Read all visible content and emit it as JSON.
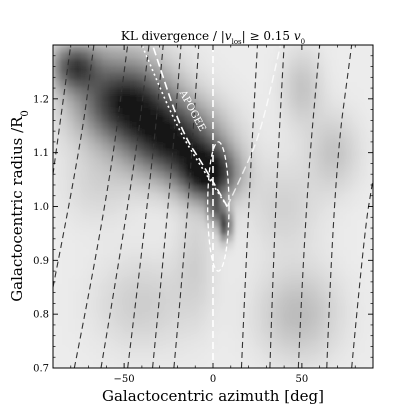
{
  "chart_data": {
    "type": "heatmap",
    "title": "KL divergence / |v_los| ≥ 0.15 v_0",
    "title_parts": {
      "prefix": "KL divergence / |",
      "v": "v",
      "sub": "los",
      "suffix": "| ≥ 0.15 ",
      "v0": "v",
      "v0_sub": "0"
    },
    "xlabel": "Galactocentric azimuth [deg]",
    "ylabel": "Galactocentric radius /R",
    "ylabel_sub": "0",
    "xlim": [
      -90,
      90
    ],
    "ylim": [
      0.7,
      1.3
    ],
    "xticks": [
      -50,
      0,
      50
    ],
    "xtick_labels": [
      "−50",
      "0",
      "50"
    ],
    "yticks": [
      0.7,
      0.8,
      0.9,
      1.0,
      1.1,
      1.2
    ],
    "ytick_labels": [
      "0.7",
      "0.8",
      "0.9",
      "1.0",
      "1.1",
      "1.2"
    ],
    "colormap": "gray_r",
    "blobs": [
      {
        "x": -2,
        "y": 1.06,
        "sx": 11,
        "sy": 0.035,
        "a": 0.9
      },
      {
        "x": -22,
        "y": 1.12,
        "sx": 18,
        "sy": 0.05,
        "a": 0.85
      },
      {
        "x": -48,
        "y": 1.19,
        "sx": 18,
        "sy": 0.05,
        "a": 0.7
      },
      {
        "x": -78,
        "y": 1.26,
        "sx": 9,
        "sy": 0.03,
        "a": 0.65
      },
      {
        "x": 7,
        "y": 0.965,
        "sx": 2.5,
        "sy": 0.02,
        "a": 0.8
      },
      {
        "x": 1,
        "y": 0.995,
        "sx": 3,
        "sy": 0.02,
        "a": 0.5
      },
      {
        "x": -55,
        "y": 1.23,
        "sx": 20,
        "sy": 0.07,
        "a": 0.25
      },
      {
        "x": 50,
        "y": 1.22,
        "sx": 8,
        "sy": 0.05,
        "a": 0.18
      },
      {
        "x": 68,
        "y": 1.1,
        "sx": 10,
        "sy": 0.05,
        "a": 0.18
      },
      {
        "x": 40,
        "y": 1.0,
        "sx": 14,
        "sy": 0.06,
        "a": 0.12
      },
      {
        "x": 48,
        "y": 0.8,
        "sx": 16,
        "sy": 0.06,
        "a": 0.22
      },
      {
        "x": -40,
        "y": 0.82,
        "sx": 18,
        "sy": 0.06,
        "a": 0.14
      },
      {
        "x": -10,
        "y": 0.9,
        "sx": 8,
        "sy": 0.08,
        "a": 0.12
      },
      {
        "x": -65,
        "y": 1.04,
        "sx": 14,
        "sy": 0.05,
        "a": 0.1
      }
    ],
    "dashed_lines_color": "#333333",
    "dashed_lines": [
      [
        [
          -90,
          1.06
        ],
        [
          -80,
          1.3
        ]
      ],
      [
        [
          -90,
          0.85
        ],
        [
          -75,
          1.1
        ],
        [
          -67,
          1.3
        ]
      ],
      [
        [
          -78,
          0.7
        ],
        [
          -60,
          1.0
        ],
        [
          -48,
          1.3
        ]
      ],
      [
        [
          -63,
          0.7
        ],
        [
          -45,
          1.05
        ],
        [
          -36,
          1.3
        ]
      ],
      [
        [
          -48,
          0.7
        ],
        [
          -35,
          1.05
        ],
        [
          -28,
          1.3
        ]
      ],
      [
        [
          -34,
          0.7
        ],
        [
          -25,
          1.0
        ],
        [
          -18,
          1.3
        ]
      ],
      [
        [
          -22,
          0.7
        ],
        [
          -15,
          0.95
        ],
        [
          -8,
          1.3
        ]
      ],
      [
        [
          16,
          0.7
        ],
        [
          20,
          1.0
        ],
        [
          25,
          1.3
        ]
      ],
      [
        [
          32,
          0.7
        ],
        [
          35,
          1.0
        ],
        [
          40,
          1.3
        ]
      ],
      [
        [
          48,
          0.7
        ],
        [
          52,
          1.0
        ],
        [
          60,
          1.3
        ]
      ],
      [
        [
          64,
          0.7
        ],
        [
          68,
          1.05
        ],
        [
          78,
          1.3
        ]
      ],
      [
        [
          78,
          0.7
        ],
        [
          85,
          0.95
        ],
        [
          90,
          1.05
        ]
      ]
    ],
    "cone_color": "#ffffff",
    "cone": {
      "vertex": [
        8,
        1.0
      ],
      "left_edge": [
        [
          8,
          1.0
        ],
        [
          -4,
          1.07
        ],
        [
          -18,
          1.14
        ],
        [
          -34,
          1.3
        ]
      ],
      "right_edge": [
        [
          8,
          1.0
        ],
        [
          18,
          1.07
        ],
        [
          27,
          1.14
        ],
        [
          38,
          1.3
        ]
      ],
      "left_dotted": [
        [
          8,
          1.0
        ],
        [
          -10,
          1.09
        ],
        [
          -22,
          1.16
        ],
        [
          -40,
          1.3
        ]
      ]
    },
    "center_line_x": 0,
    "loop": {
      "cx": 3,
      "cy": 1.0,
      "rx": 6,
      "ry": 0.12
    },
    "annotation": {
      "text": "APOGEE",
      "x": -13,
      "y": 1.175
    }
  }
}
